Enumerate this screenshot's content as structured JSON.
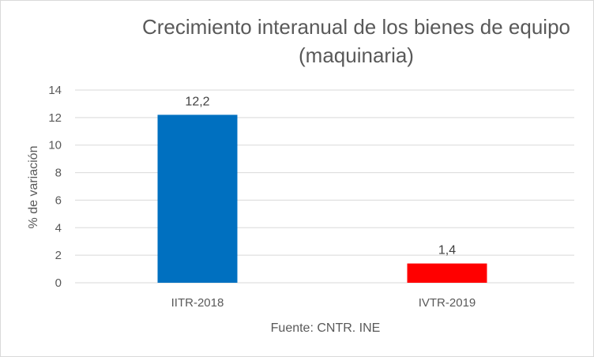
{
  "chart_data": {
    "type": "bar",
    "title_line1": "Crecimiento interanual de los bienes de equipo",
    "title_line2": "(maquinaria)",
    "ylabel": "% de variación",
    "xlabel": "Fuente: CNTR. INE",
    "categories": [
      "IITR-2018",
      "IVTR-2019"
    ],
    "values": [
      12.2,
      1.4
    ],
    "data_labels": [
      "12,2",
      "1,4"
    ],
    "bar_colors": [
      "#0070C0",
      "#FF0000"
    ],
    "ylim": [
      0,
      14
    ],
    "yticks": [
      0,
      2,
      4,
      6,
      8,
      10,
      12,
      14
    ],
    "grid": true,
    "legend": "none"
  }
}
